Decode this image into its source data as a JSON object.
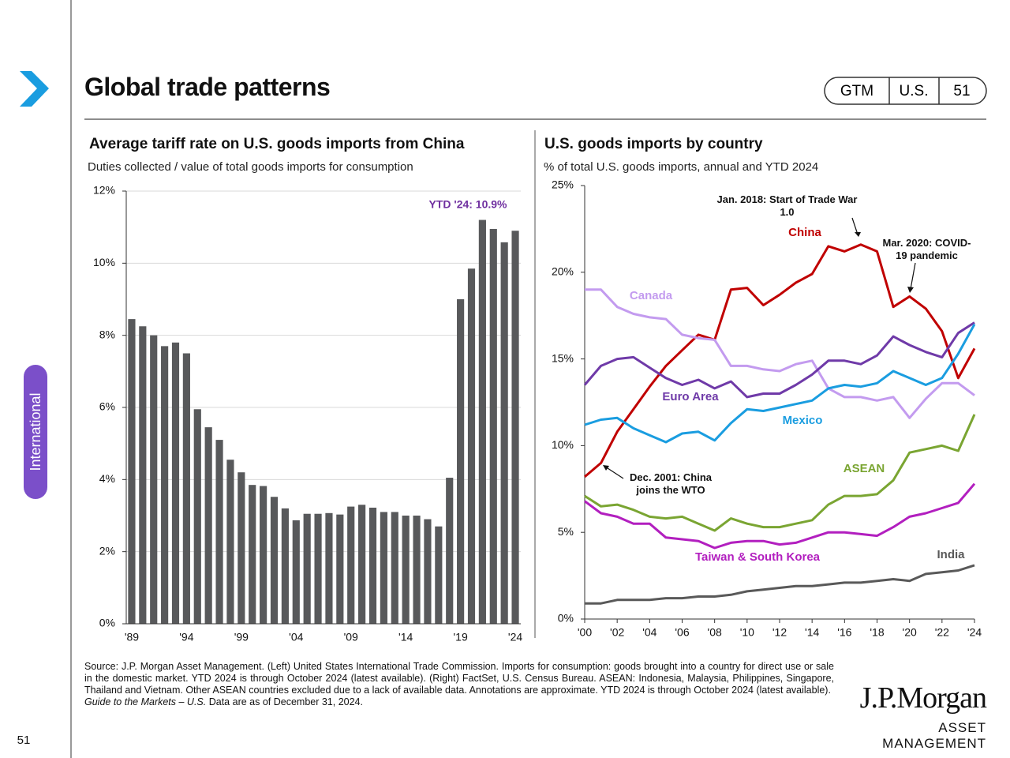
{
  "slide": {
    "title": "Global trade patterns",
    "badge": [
      "GTM",
      "U.S.",
      "51"
    ],
    "section": "International",
    "page_number": "51",
    "source": "Source: J.P. Morgan Asset Management. (Left) United States International Trade Commission. Imports for consumption: goods brought into a country for direct use or sale in the domestic market. YTD 2024 is through October 2024 (latest available). (Right) FactSet, U.S. Census Bureau. ASEAN: Indonesia, Malaysia, Philippines, Singapore, Thailand and Vietnam. Other ASEAN countries excluded due to a lack of available data. Annotations are approximate. YTD 2024 is through October 2024 (latest available).",
    "guide": "Guide to the Markets – U.S.",
    "as_of": "Data are as of December 31, 2024.",
    "logo": "J.P.Morgan",
    "logo_sub": "ASSET MANAGEMENT"
  },
  "chart_data": [
    {
      "type": "bar",
      "title": "Average tariff rate on U.S. goods imports from China",
      "subtitle": "Duties collected / value of total goods imports for consumption",
      "categories": [
        "'89",
        null,
        null,
        null,
        null,
        "'94",
        null,
        null,
        null,
        null,
        "'99",
        null,
        null,
        null,
        null,
        "'04",
        null,
        null,
        null,
        null,
        "'09",
        null,
        null,
        null,
        null,
        "'14",
        null,
        null,
        null,
        null,
        "'19",
        null,
        null,
        null,
        null,
        "'24"
      ],
      "values": [
        8.45,
        8.25,
        8.0,
        7.7,
        7.8,
        7.5,
        5.95,
        5.45,
        5.1,
        4.55,
        4.2,
        3.85,
        3.82,
        3.52,
        3.2,
        2.87,
        3.05,
        3.05,
        3.07,
        3.03,
        3.25,
        3.3,
        3.22,
        3.1,
        3.1,
        3.0,
        3.0,
        2.9,
        2.7,
        4.05,
        9.0,
        9.85,
        11.2,
        10.95,
        10.58,
        10.9
      ],
      "color": "#58595b",
      "ylim": [
        0,
        12
      ],
      "yticks": [
        {
          "value": 0,
          "label": "0%"
        },
        {
          "value": 2,
          "label": "2%"
        },
        {
          "value": 4,
          "label": "4%"
        },
        {
          "value": 6,
          "label": "6%"
        },
        {
          "value": 8,
          "label": "8%"
        },
        {
          "value": 10,
          "label": "10%"
        },
        {
          "value": 12,
          "label": "12%"
        }
      ],
      "grid": true,
      "annotation": "YTD '24: 10.9%",
      "annotation_color": "#7030a0"
    },
    {
      "type": "line",
      "title": "U.S. goods imports by country",
      "subtitle": "% of total U.S. goods imports, annual and YTD 2024",
      "x": [
        2000,
        2001,
        2002,
        2003,
        2004,
        2005,
        2006,
        2007,
        2008,
        2009,
        2010,
        2011,
        2012,
        2013,
        2014,
        2015,
        2016,
        2017,
        2018,
        2019,
        2020,
        2021,
        2022,
        2023,
        2024
      ],
      "xlim": [
        2000,
        2024
      ],
      "xticks": [
        {
          "value": 2000,
          "label": "'00"
        },
        {
          "value": 2002,
          "label": "'02"
        },
        {
          "value": 2004,
          "label": "'04"
        },
        {
          "value": 2006,
          "label": "'06"
        },
        {
          "value": 2008,
          "label": "'08"
        },
        {
          "value": 2010,
          "label": "'10"
        },
        {
          "value": 2012,
          "label": "'12"
        },
        {
          "value": 2014,
          "label": "'14"
        },
        {
          "value": 2016,
          "label": "'16"
        },
        {
          "value": 2018,
          "label": "'18"
        },
        {
          "value": 2020,
          "label": "'20"
        },
        {
          "value": 2022,
          "label": "'22"
        },
        {
          "value": 2024,
          "label": "'24"
        }
      ],
      "ylim": [
        0,
        25
      ],
      "yticks": [
        {
          "value": 0,
          "label": "0%"
        },
        {
          "value": 5,
          "label": "5%"
        },
        {
          "value": 10,
          "label": "10%"
        },
        {
          "value": 15,
          "label": "15%"
        },
        {
          "value": 20,
          "label": "20%"
        },
        {
          "value": 25,
          "label": "25%"
        }
      ],
      "grid": false,
      "series": [
        {
          "name": "China",
          "color": "#c00000",
          "values": [
            8.2,
            9.0,
            10.8,
            12.1,
            13.4,
            14.6,
            15.5,
            16.4,
            16.1,
            19.0,
            19.1,
            18.1,
            18.7,
            19.4,
            19.9,
            21.5,
            21.2,
            21.6,
            21.2,
            18.0,
            18.6,
            17.9,
            16.6,
            13.9,
            15.6
          ]
        },
        {
          "name": "Canada",
          "color": "#c39bef",
          "values": [
            19.0,
            19.0,
            18.0,
            17.6,
            17.4,
            17.3,
            16.4,
            16.2,
            16.1,
            14.6,
            14.6,
            14.4,
            14.3,
            14.7,
            14.9,
            13.3,
            12.8,
            12.8,
            12.6,
            12.8,
            11.6,
            12.7,
            13.6,
            13.6,
            12.9
          ]
        },
        {
          "name": "Euro Area",
          "color": "#6f3aa8",
          "values": [
            13.5,
            14.6,
            15.0,
            15.1,
            14.5,
            13.9,
            13.5,
            13.8,
            13.3,
            13.7,
            12.8,
            13.0,
            13.0,
            13.5,
            14.1,
            14.9,
            14.9,
            14.7,
            15.2,
            16.3,
            15.8,
            15.4,
            15.1,
            16.5,
            17.1
          ]
        },
        {
          "name": "Mexico",
          "color": "#1a9de0",
          "values": [
            11.2,
            11.5,
            11.6,
            11.0,
            10.6,
            10.2,
            10.7,
            10.8,
            10.3,
            11.3,
            12.1,
            12.0,
            12.2,
            12.4,
            12.6,
            13.3,
            13.5,
            13.4,
            13.6,
            14.3,
            13.9,
            13.5,
            13.9,
            15.3,
            17.0
          ]
        },
        {
          "name": "ASEAN",
          "color": "#7aa532",
          "values": [
            7.1,
            6.5,
            6.6,
            6.3,
            5.9,
            5.8,
            5.9,
            5.5,
            5.1,
            5.8,
            5.5,
            5.3,
            5.3,
            5.5,
            5.7,
            6.6,
            7.1,
            7.1,
            7.2,
            8.0,
            9.6,
            9.8,
            10.0,
            9.7,
            11.8
          ]
        },
        {
          "name": "Taiwan & South Korea",
          "color": "#b21fbf",
          "values": [
            6.8,
            6.1,
            5.9,
            5.5,
            5.5,
            4.7,
            4.6,
            4.5,
            4.1,
            4.4,
            4.5,
            4.5,
            4.3,
            4.4,
            4.7,
            5.0,
            5.0,
            4.9,
            4.8,
            5.3,
            5.9,
            6.1,
            6.4,
            6.7,
            7.8
          ]
        },
        {
          "name": "India",
          "color": "#595959",
          "values": [
            0.9,
            0.9,
            1.1,
            1.1,
            1.1,
            1.2,
            1.2,
            1.3,
            1.3,
            1.4,
            1.6,
            1.7,
            1.8,
            1.9,
            1.9,
            2.0,
            2.1,
            2.1,
            2.2,
            2.3,
            2.2,
            2.6,
            2.7,
            2.8,
            3.1
          ]
        }
      ],
      "annotations": [
        "Jan. 2018: Start of Trade War 1.0",
        "Mar. 2020: COVID-19 pandemic",
        "Dec. 2001: China joins the WTO"
      ]
    }
  ]
}
